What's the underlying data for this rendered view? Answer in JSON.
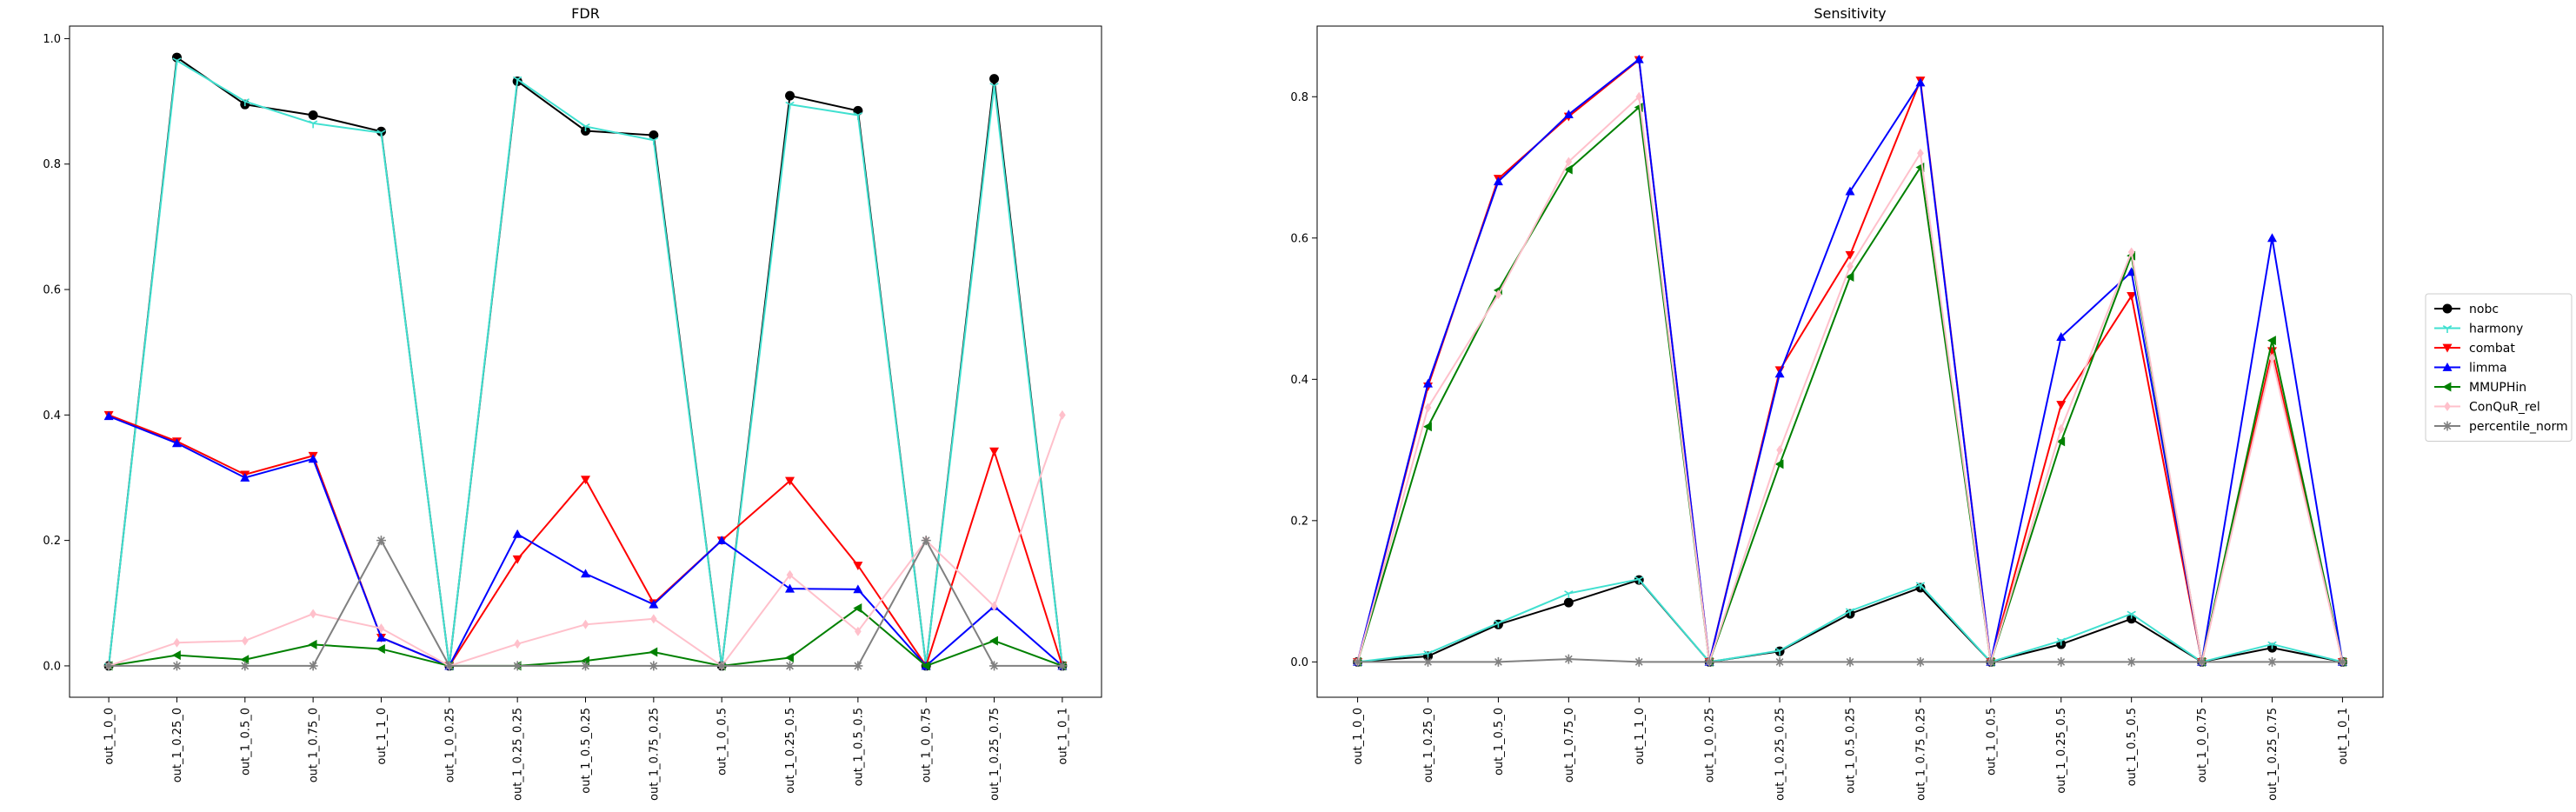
{
  "chart_data": [
    {
      "type": "line",
      "title": "FDR",
      "xlabel": "",
      "ylabel": "",
      "categories": [
        "out_1_0_0",
        "out_1_0.25_0",
        "out_1_0.5_0",
        "out_1_0.75_0",
        "out_1_1_0",
        "out_1_0_0.25",
        "out_1_0.25_0.25",
        "out_1_0.5_0.25",
        "out_1_0.75_0.25",
        "out_1_0_0.5",
        "out_1_0.25_0.5",
        "out_1_0.5_0.5",
        "out_1_0_0.75",
        "out_1_0.25_0.75",
        "out_1_0_1"
      ],
      "ylim": [
        -0.05,
        1.02
      ],
      "yticks": [
        0.0,
        0.2,
        0.4,
        0.6,
        0.8,
        1.0
      ],
      "ytick_labels": [
        "0.0",
        "0.2",
        "0.4",
        "0.6",
        "0.8",
        "1.0"
      ],
      "grid": false,
      "series": [
        {
          "name": "nobc",
          "color": "#000000",
          "marker": "circle",
          "values": [
            0.0,
            0.97,
            0.895,
            0.878,
            0.852,
            0.0,
            0.932,
            0.853,
            0.846,
            0.0,
            0.909,
            0.885,
            0.0,
            0.936,
            0.0
          ]
        },
        {
          "name": "harmony",
          "color": "#40e0d0",
          "marker": "tri_down",
          "values": [
            0.0,
            0.965,
            0.9,
            0.865,
            0.85,
            0.0,
            0.935,
            0.86,
            0.838,
            0.0,
            0.895,
            0.878,
            0.0,
            0.925,
            0.0
          ]
        },
        {
          "name": "combat",
          "color": "#ff0000",
          "marker": "triangle_down",
          "values": [
            0.4,
            0.358,
            0.305,
            0.335,
            0.045,
            0.0,
            0.17,
            0.297,
            0.1,
            0.2,
            0.295,
            0.16,
            0.0,
            0.342,
            0.0
          ]
        },
        {
          "name": "limma",
          "color": "#0000ff",
          "marker": "triangle_up",
          "values": [
            0.398,
            0.355,
            0.3,
            0.33,
            0.045,
            0.0,
            0.21,
            0.147,
            0.098,
            0.2,
            0.123,
            0.122,
            0.0,
            0.095,
            0.0
          ]
        },
        {
          "name": "MMUPHin",
          "color": "#008000",
          "marker": "triangle_left",
          "values": [
            0.0,
            0.017,
            0.01,
            0.034,
            0.027,
            0.0,
            0.0,
            0.008,
            0.022,
            0.0,
            0.013,
            0.092,
            0.0,
            0.04,
            0.0
          ]
        },
        {
          "name": "ConQuR_rel",
          "color": "#ffc0cb",
          "marker": "diamond",
          "values": [
            0.0,
            0.037,
            0.04,
            0.083,
            0.06,
            0.0,
            0.035,
            0.066,
            0.075,
            0.0,
            0.145,
            0.055,
            0.2,
            0.095,
            0.4
          ]
        },
        {
          "name": "percentile_norm",
          "color": "#808080",
          "marker": "star",
          "values": [
            0.0,
            0.0,
            0.0,
            0.0,
            0.2,
            0.0,
            0.0,
            0.0,
            0.0,
            0.0,
            0.0,
            0.0,
            0.2,
            0.0,
            0.0
          ]
        }
      ]
    },
    {
      "type": "line",
      "title": "Sensitivity",
      "xlabel": "",
      "ylabel": "",
      "categories": [
        "out_1_0_0",
        "out_1_0.25_0",
        "out_1_0.5_0",
        "out_1_0.75_0",
        "out_1_1_0",
        "out_1_0_0.25",
        "out_1_0.25_0.25",
        "out_1_0.5_0.25",
        "out_1_0.75_0.25",
        "out_1_0_0.5",
        "out_1_0.25_0.5",
        "out_1_0.5_0.5",
        "out_1_0_0.75",
        "out_1_0.25_0.75",
        "out_1_0_1"
      ],
      "ylim": [
        -0.05,
        0.9
      ],
      "yticks": [
        0.0,
        0.2,
        0.4,
        0.6,
        0.8
      ],
      "ytick_labels": [
        "0.0",
        "0.2",
        "0.4",
        "0.6",
        "0.8"
      ],
      "grid": false,
      "legend": "right",
      "series": [
        {
          "name": "nobc",
          "color": "#000000",
          "marker": "circle",
          "values": [
            0.0,
            0.008,
            0.053,
            0.084,
            0.116,
            0.0,
            0.015,
            0.068,
            0.105,
            0.0,
            0.025,
            0.061,
            0.0,
            0.02,
            0.0
          ]
        },
        {
          "name": "harmony",
          "color": "#40e0d0",
          "marker": "tri_down",
          "values": [
            0.0,
            0.012,
            0.055,
            0.097,
            0.117,
            0.0,
            0.016,
            0.072,
            0.109,
            0.0,
            0.03,
            0.068,
            0.0,
            0.025,
            0.0
          ]
        },
        {
          "name": "combat",
          "color": "#ff0000",
          "marker": "triangle_down",
          "values": [
            0.0,
            0.39,
            0.684,
            0.772,
            0.852,
            0.0,
            0.413,
            0.576,
            0.823,
            0.0,
            0.364,
            0.518,
            0.0,
            0.44,
            0.0
          ]
        },
        {
          "name": "limma",
          "color": "#0000ff",
          "marker": "triangle_up",
          "values": [
            0.0,
            0.394,
            0.68,
            0.775,
            0.853,
            0.0,
            0.408,
            0.666,
            0.82,
            0.0,
            0.46,
            0.552,
            0.0,
            0.6,
            0.0
          ]
        },
        {
          "name": "MMUPHin",
          "color": "#008000",
          "marker": "triangle_left",
          "values": [
            0.0,
            0.333,
            0.526,
            0.697,
            0.785,
            0.0,
            0.28,
            0.545,
            0.7,
            0.0,
            0.312,
            0.575,
            0.0,
            0.455,
            0.0
          ]
        },
        {
          "name": "ConQuR_rel",
          "color": "#ffc0cb",
          "marker": "diamond",
          "values": [
            0.0,
            0.36,
            0.52,
            0.708,
            0.8,
            0.0,
            0.3,
            0.56,
            0.72,
            0.0,
            0.33,
            0.58,
            0.0,
            0.43,
            0.0
          ]
        },
        {
          "name": "percentile_norm",
          "color": "#808080",
          "marker": "star",
          "values": [
            0.0,
            0.0,
            0.0,
            0.004,
            0.0,
            0.0,
            0.0,
            0.0,
            0.0,
            0.0,
            0.0,
            0.0,
            0.0,
            0.0,
            0.0
          ]
        }
      ]
    }
  ]
}
